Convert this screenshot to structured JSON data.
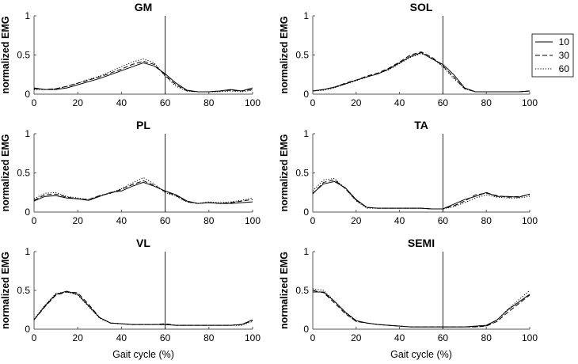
{
  "chart_data": [
    {
      "type": "line",
      "title": "GM",
      "xlabel": "",
      "ylabel": "normalized EMG",
      "xlim": [
        0,
        100
      ],
      "ylim": [
        0,
        1
      ],
      "xticks": [
        "0",
        "20",
        "40",
        "60",
        "80",
        "100"
      ],
      "yticks": [
        "0",
        "0.5",
        "1"
      ],
      "vline": 60,
      "x": [
        0,
        5,
        10,
        15,
        20,
        25,
        30,
        35,
        40,
        45,
        50,
        55,
        60,
        65,
        70,
        75,
        80,
        85,
        90,
        95,
        100
      ],
      "series": [
        {
          "name": "10",
          "values": [
            0.08,
            0.06,
            0.06,
            0.08,
            0.12,
            0.16,
            0.2,
            0.25,
            0.3,
            0.35,
            0.4,
            0.36,
            0.26,
            0.14,
            0.05,
            0.03,
            0.03,
            0.04,
            0.06,
            0.04,
            0.08
          ]
        },
        {
          "name": "30",
          "values": [
            0.07,
            0.06,
            0.07,
            0.1,
            0.14,
            0.18,
            0.22,
            0.27,
            0.32,
            0.38,
            0.42,
            0.38,
            0.24,
            0.12,
            0.04,
            0.03,
            0.03,
            0.04,
            0.05,
            0.04,
            0.06
          ]
        },
        {
          "name": "60",
          "values": [
            0.06,
            0.06,
            0.07,
            0.1,
            0.14,
            0.19,
            0.23,
            0.29,
            0.35,
            0.41,
            0.45,
            0.4,
            0.23,
            0.1,
            0.04,
            0.03,
            0.03,
            0.03,
            0.04,
            0.03,
            0.05
          ]
        }
      ]
    },
    {
      "type": "line",
      "title": "SOL",
      "xlabel": "",
      "ylabel": "normalized EMG",
      "xlim": [
        0,
        100
      ],
      "ylim": [
        0,
        1
      ],
      "xticks": [
        "0",
        "20",
        "40",
        "60",
        "80",
        "100"
      ],
      "yticks": [
        "0",
        "0.5",
        "1"
      ],
      "vline": 60,
      "x": [
        0,
        5,
        10,
        15,
        20,
        25,
        30,
        35,
        40,
        45,
        50,
        55,
        60,
        65,
        70,
        75,
        80,
        85,
        90,
        95,
        100
      ],
      "series": [
        {
          "name": "10",
          "values": [
            0.04,
            0.06,
            0.09,
            0.13,
            0.18,
            0.22,
            0.26,
            0.32,
            0.4,
            0.48,
            0.53,
            0.45,
            0.38,
            0.25,
            0.08,
            0.03,
            0.03,
            0.03,
            0.03,
            0.03,
            0.04
          ]
        },
        {
          "name": "30",
          "values": [
            0.04,
            0.06,
            0.09,
            0.14,
            0.18,
            0.23,
            0.27,
            0.33,
            0.41,
            0.5,
            0.54,
            0.47,
            0.36,
            0.22,
            0.07,
            0.03,
            0.03,
            0.03,
            0.03,
            0.03,
            0.04
          ]
        },
        {
          "name": "60",
          "values": [
            0.04,
            0.05,
            0.08,
            0.13,
            0.17,
            0.22,
            0.26,
            0.31,
            0.39,
            0.47,
            0.52,
            0.46,
            0.35,
            0.2,
            0.07,
            0.03,
            0.03,
            0.03,
            0.03,
            0.03,
            0.04
          ]
        }
      ]
    },
    {
      "type": "line",
      "title": "PL",
      "xlabel": "",
      "ylabel": "normalized EMG",
      "xlim": [
        0,
        100
      ],
      "ylim": [
        0,
        1
      ],
      "xticks": [
        "0",
        "20",
        "40",
        "60",
        "80",
        "100"
      ],
      "yticks": [
        "0",
        "0.5",
        "1"
      ],
      "vline": 60,
      "x": [
        0,
        5,
        10,
        15,
        20,
        25,
        30,
        35,
        40,
        45,
        50,
        55,
        60,
        65,
        70,
        75,
        80,
        85,
        90,
        95,
        100
      ],
      "series": [
        {
          "name": "10",
          "values": [
            0.14,
            0.2,
            0.21,
            0.18,
            0.17,
            0.15,
            0.2,
            0.25,
            0.27,
            0.33,
            0.38,
            0.33,
            0.27,
            0.22,
            0.14,
            0.11,
            0.12,
            0.11,
            0.11,
            0.12,
            0.13
          ]
        },
        {
          "name": "30",
          "values": [
            0.15,
            0.22,
            0.23,
            0.19,
            0.17,
            0.16,
            0.21,
            0.24,
            0.29,
            0.35,
            0.4,
            0.34,
            0.26,
            0.21,
            0.13,
            0.11,
            0.12,
            0.11,
            0.12,
            0.14,
            0.16
          ]
        },
        {
          "name": "60",
          "values": [
            0.17,
            0.24,
            0.25,
            0.2,
            0.18,
            0.16,
            0.21,
            0.24,
            0.3,
            0.37,
            0.44,
            0.36,
            0.25,
            0.2,
            0.13,
            0.11,
            0.13,
            0.12,
            0.13,
            0.15,
            0.18
          ]
        }
      ]
    },
    {
      "type": "line",
      "title": "TA",
      "xlabel": "",
      "ylabel": "normalized EMG",
      "xlim": [
        0,
        100
      ],
      "ylim": [
        0,
        1
      ],
      "xticks": [
        "0",
        "20",
        "40",
        "60",
        "80",
        "100"
      ],
      "yticks": [
        "0",
        "0.5",
        "1"
      ],
      "vline": 60,
      "x": [
        0,
        5,
        10,
        15,
        20,
        25,
        30,
        35,
        40,
        45,
        50,
        55,
        60,
        65,
        70,
        75,
        80,
        85,
        90,
        95,
        100
      ],
      "series": [
        {
          "name": "10",
          "values": [
            0.24,
            0.36,
            0.39,
            0.31,
            0.16,
            0.06,
            0.05,
            0.05,
            0.05,
            0.05,
            0.05,
            0.04,
            0.04,
            0.1,
            0.16,
            0.2,
            0.25,
            0.2,
            0.2,
            0.19,
            0.23
          ]
        },
        {
          "name": "30",
          "values": [
            0.23,
            0.38,
            0.41,
            0.3,
            0.15,
            0.06,
            0.05,
            0.05,
            0.05,
            0.05,
            0.05,
            0.04,
            0.04,
            0.08,
            0.14,
            0.22,
            0.24,
            0.21,
            0.19,
            0.2,
            0.22
          ]
        },
        {
          "name": "60",
          "values": [
            0.27,
            0.41,
            0.43,
            0.3,
            0.14,
            0.05,
            0.05,
            0.05,
            0.05,
            0.05,
            0.05,
            0.04,
            0.04,
            0.07,
            0.12,
            0.18,
            0.22,
            0.19,
            0.18,
            0.18,
            0.2
          ]
        }
      ]
    },
    {
      "type": "line",
      "title": "VL",
      "xlabel": "Gait cycle (%)",
      "ylabel": "normalized EMG",
      "xlim": [
        0,
        100
      ],
      "ylim": [
        0,
        1
      ],
      "xticks": [
        "0",
        "20",
        "40",
        "60",
        "80",
        "100"
      ],
      "yticks": [
        "0",
        "0.5",
        "1"
      ],
      "vline": 60,
      "x": [
        0,
        5,
        10,
        15,
        20,
        25,
        30,
        35,
        40,
        45,
        50,
        55,
        60,
        65,
        70,
        75,
        80,
        85,
        90,
        95,
        100
      ],
      "series": [
        {
          "name": "10",
          "values": [
            0.12,
            0.3,
            0.45,
            0.49,
            0.45,
            0.3,
            0.15,
            0.08,
            0.07,
            0.06,
            0.06,
            0.06,
            0.06,
            0.05,
            0.05,
            0.05,
            0.05,
            0.05,
            0.05,
            0.06,
            0.12
          ]
        },
        {
          "name": "30",
          "values": [
            0.12,
            0.29,
            0.44,
            0.48,
            0.47,
            0.32,
            0.15,
            0.08,
            0.07,
            0.06,
            0.06,
            0.06,
            0.07,
            0.05,
            0.05,
            0.05,
            0.05,
            0.05,
            0.05,
            0.06,
            0.11
          ]
        },
        {
          "name": "60",
          "values": [
            0.13,
            0.31,
            0.46,
            0.48,
            0.44,
            0.29,
            0.14,
            0.08,
            0.07,
            0.06,
            0.06,
            0.06,
            0.06,
            0.05,
            0.05,
            0.05,
            0.05,
            0.05,
            0.05,
            0.05,
            0.1
          ]
        }
      ]
    },
    {
      "type": "line",
      "title": "SEMI",
      "xlabel": "Gait cycle (%)",
      "ylabel": "normalized EMG",
      "xlim": [
        0,
        100
      ],
      "ylim": [
        0,
        1
      ],
      "xticks": [
        "0",
        "20",
        "40",
        "60",
        "80",
        "100"
      ],
      "yticks": [
        "0",
        "0.5",
        "1"
      ],
      "vline": 60,
      "x": [
        0,
        5,
        10,
        15,
        20,
        25,
        30,
        35,
        40,
        45,
        50,
        55,
        60,
        65,
        70,
        75,
        80,
        85,
        90,
        95,
        100
      ],
      "series": [
        {
          "name": "10",
          "values": [
            0.48,
            0.48,
            0.36,
            0.22,
            0.11,
            0.08,
            0.06,
            0.05,
            0.04,
            0.03,
            0.03,
            0.03,
            0.03,
            0.03,
            0.03,
            0.04,
            0.05,
            0.12,
            0.25,
            0.35,
            0.45
          ]
        },
        {
          "name": "30",
          "values": [
            0.5,
            0.47,
            0.34,
            0.2,
            0.1,
            0.08,
            0.06,
            0.05,
            0.04,
            0.03,
            0.03,
            0.03,
            0.03,
            0.03,
            0.03,
            0.03,
            0.04,
            0.1,
            0.22,
            0.33,
            0.44
          ]
        },
        {
          "name": "60",
          "values": [
            0.52,
            0.5,
            0.36,
            0.21,
            0.1,
            0.08,
            0.06,
            0.05,
            0.04,
            0.03,
            0.03,
            0.03,
            0.03,
            0.03,
            0.03,
            0.03,
            0.04,
            0.12,
            0.26,
            0.38,
            0.5
          ]
        }
      ]
    }
  ],
  "legend": {
    "entries": [
      "10",
      "30",
      "60"
    ],
    "styles": [
      "solid",
      "dashed",
      "dotted"
    ]
  },
  "colors": {
    "line": "#000000",
    "axis": "#555555",
    "vline": "#222222",
    "legend_border": "#000000"
  }
}
